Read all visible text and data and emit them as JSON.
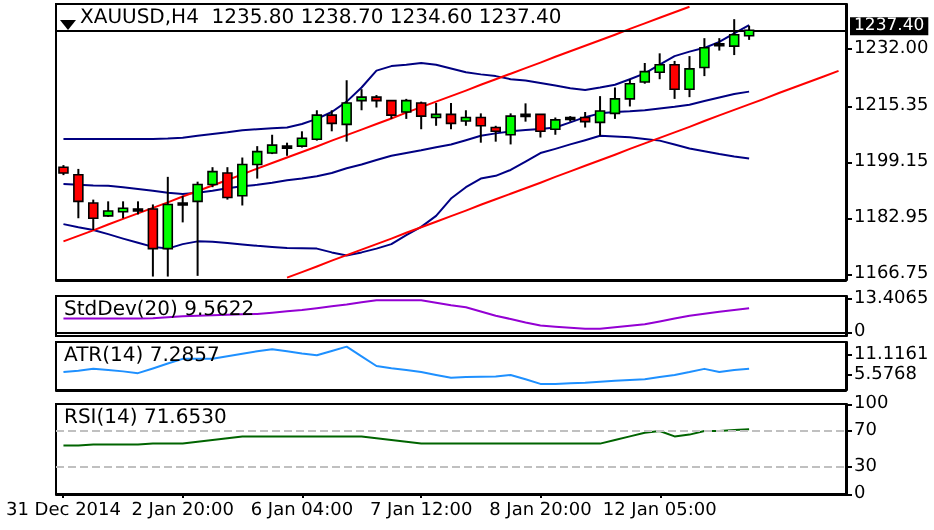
{
  "chart_data": [
    {
      "type": "candlestick",
      "title": "XAUUSD,H4  1235.80 1238.70 1234.60 1237.40",
      "categories": [
        null,
        null,
        null,
        null,
        null,
        null,
        null,
        null,
        null,
        null,
        null,
        null,
        null,
        null,
        null,
        null,
        null,
        null,
        null,
        null,
        null,
        null,
        null,
        null,
        null,
        null,
        null,
        null,
        null,
        null,
        null,
        null,
        null,
        null,
        null,
        null,
        null,
        null,
        null,
        null,
        null,
        null,
        null,
        null,
        null,
        null,
        null,
        null,
        null,
        null,
        null,
        null,
        null
      ],
      "ohlc": [
        [
          1197.7,
          1198.3,
          1195.4,
          1196.0
        ],
        [
          1195.5,
          1197.2,
          1182.9,
          1187.8
        ],
        [
          1187.3,
          1188.3,
          1179.5,
          1182.9
        ],
        [
          1183.6,
          1187.8,
          1183.3,
          1185.0
        ],
        [
          1184.8,
          1187.8,
          1182.9,
          1185.8
        ],
        [
          1185.6,
          1187.8,
          1184.0,
          1185.6
        ],
        [
          1185.6,
          1186.9,
          1166.0,
          1174.1
        ],
        [
          1174.1,
          1194.9,
          1166.0,
          1186.9
        ],
        [
          1187.3,
          1189.4,
          1181.7,
          1187.3
        ],
        [
          1187.8,
          1193.5,
          1166.2,
          1192.7
        ],
        [
          1192.7,
          1197.7,
          1191.9,
          1196.4
        ],
        [
          1196.0,
          1197.7,
          1188.3,
          1188.9
        ],
        [
          1189.4,
          1200.5,
          1186.6,
          1198.5
        ],
        [
          1198.5,
          1203.8,
          1194.4,
          1202.2
        ],
        [
          1201.8,
          1207.1,
          1201.5,
          1204.1
        ],
        [
          1203.8,
          1204.8,
          1201.0,
          1203.8
        ],
        [
          1203.8,
          1208.1,
          1203.4,
          1206.1
        ],
        [
          1205.8,
          1214.2,
          1205.4,
          1212.8
        ],
        [
          1212.8,
          1214.2,
          1208.1,
          1210.4
        ],
        [
          1210.1,
          1222.9,
          1205.1,
          1216.3
        ],
        [
          1217.0,
          1220.3,
          1214.2,
          1218.0
        ],
        [
          1218.0,
          1218.6,
          1215.0,
          1217.0
        ],
        [
          1217.0,
          1217.0,
          1211.7,
          1212.8
        ],
        [
          1213.7,
          1217.5,
          1211.7,
          1217.0
        ],
        [
          1216.3,
          1216.7,
          1208.7,
          1212.5
        ],
        [
          1212.1,
          1216.3,
          1209.7,
          1213.0
        ],
        [
          1213.0,
          1216.3,
          1208.7,
          1210.4
        ],
        [
          1211.1,
          1214.2,
          1209.7,
          1212.1
        ],
        [
          1212.1,
          1213.3,
          1204.8,
          1209.7
        ],
        [
          1209.2,
          1209.7,
          1205.1,
          1208.1
        ],
        [
          1207.1,
          1213.3,
          1204.3,
          1212.5
        ],
        [
          1213.0,
          1216.2,
          1210.9,
          1213.0
        ],
        [
          1213.0,
          1213.0,
          1206.3,
          1208.1
        ],
        [
          1208.7,
          1212.1,
          1207.1,
          1211.4
        ],
        [
          1212.1,
          1212.5,
          1210.9,
          1212.1
        ],
        [
          1212.1,
          1213.7,
          1209.2,
          1210.9
        ],
        [
          1210.7,
          1218.3,
          1206.8,
          1214.0
        ],
        [
          1213.3,
          1220.8,
          1211.7,
          1217.5
        ],
        [
          1217.5,
          1223.2,
          1215.3,
          1221.9
        ],
        [
          1222.4,
          1227.9,
          1221.9,
          1225.4
        ],
        [
          1225.2,
          1230.7,
          1223.2,
          1227.4
        ],
        [
          1227.4,
          1228.5,
          1217.5,
          1220.3
        ],
        [
          1220.3,
          1229.9,
          1218.0,
          1226.2
        ],
        [
          1226.6,
          1235.1,
          1224.1,
          1232.3
        ],
        [
          1233.5,
          1235.1,
          1231.5,
          1233.5
        ],
        [
          1232.8,
          1240.6,
          1230.2,
          1236.1
        ],
        [
          1235.8,
          1238.7,
          1234.6,
          1237.4
        ],
        null,
        null,
        null,
        null,
        null,
        null
      ],
      "series": [
        {
          "type": "line",
          "color": "#000080",
          "values": [
            1205.9,
            1205.9,
            1205.9,
            1205.9,
            1205.9,
            1205.9,
            1205.9,
            1206.0,
            1206.2,
            1206.8,
            1207.3,
            1207.8,
            1208.4,
            1208.7,
            1209.0,
            1209.2,
            1210.2,
            1211.7,
            1213.7,
            1216.7,
            1220.8,
            1225.7,
            1227.0,
            1227.4,
            1227.9,
            1227.4,
            1226.3,
            1225.2,
            1224.6,
            1224.1,
            1223.2,
            1222.8,
            1222.1,
            1221.4,
            1220.6,
            1220.1,
            1220.8,
            1221.6,
            1223.2,
            1224.9,
            1227.4,
            1229.9,
            1231.2,
            1232.3,
            1234.0,
            1236.5,
            1238.9,
            null,
            null,
            null,
            null,
            null,
            null
          ]
        },
        {
          "type": "line",
          "color": "#000082",
          "values": [
            1192.8,
            1192.6,
            1192.4,
            1192.3,
            1191.9,
            1191.4,
            1190.9,
            1190.3,
            1189.9,
            1190.3,
            1190.9,
            1191.6,
            1192.2,
            1192.6,
            1193.2,
            1193.9,
            1194.4,
            1195.1,
            1196.0,
            1197.4,
            1198.5,
            1199.8,
            1201.0,
            1201.8,
            1202.6,
            1203.5,
            1204.3,
            1205.5,
            1206.8,
            1207.5,
            1208.1,
            1208.5,
            1208.8,
            1209.2,
            1210.7,
            1212.2,
            1213.3,
            1213.7,
            1213.9,
            1214.2,
            1214.7,
            1215.2,
            1215.8,
            1216.9,
            1217.9,
            1218.9,
            1219.6,
            null,
            null,
            null,
            null,
            null,
            null
          ]
        },
        {
          "type": "line",
          "color": "#000084",
          "values": [
            1181.2,
            1180.3,
            1179.5,
            1178.3,
            1177.0,
            1175.8,
            1174.6,
            1174.1,
            1175.4,
            1176.2,
            1176.1,
            1175.7,
            1175.3,
            1174.9,
            1174.6,
            1174.3,
            1174.2,
            1174.1,
            1173.0,
            1172.1,
            1173.0,
            1174.1,
            1175.4,
            1178.0,
            1180.4,
            1183.6,
            1188.6,
            1191.9,
            1194.4,
            1195.2,
            1196.9,
            1199.3,
            1201.8,
            1203.0,
            1204.3,
            1205.5,
            1206.8,
            1206.6,
            1206.4,
            1205.9,
            1205.4,
            1204.3,
            1203.1,
            1202.3,
            1201.5,
            1200.8,
            1200.2,
            null,
            null,
            null,
            null,
            null,
            null
          ]
        },
        {
          "type": "line",
          "color": "#ff0000",
          "values": [
            1176.2,
            1177.8,
            1179.4,
            1181.1,
            1182.7,
            1184.3,
            1185.9,
            1187.5,
            1189.2,
            1190.8,
            1192.4,
            1194.0,
            1195.6,
            1197.3,
            1198.9,
            1200.5,
            1202.1,
            1203.7,
            1205.4,
            1207.0,
            1208.6,
            1210.2,
            1211.8,
            1213.5,
            1215.1,
            1216.7,
            1218.3,
            1219.9,
            1221.6,
            1223.2,
            1224.8,
            1226.4,
            1228.0,
            1229.7,
            1231.3,
            1232.9,
            1234.5,
            1236.1,
            1237.8,
            1239.4,
            1241.0,
            1242.6,
            1244.2,
            null,
            null,
            null,
            null,
            null,
            null,
            null,
            null,
            null,
            null
          ]
        },
        {
          "type": "line",
          "color": "#fe0000",
          "values": [
            null,
            null,
            null,
            null,
            null,
            null,
            null,
            null,
            null,
            null,
            null,
            null,
            null,
            null,
            null,
            1165.7,
            1167.3,
            1168.9,
            1170.6,
            1172.2,
            1173.8,
            1175.4,
            1177.0,
            1178.7,
            1180.3,
            1181.9,
            1183.5,
            1185.1,
            1186.8,
            1188.4,
            1190.0,
            1191.6,
            1193.2,
            1194.9,
            1196.5,
            1198.1,
            1199.7,
            1201.3,
            1203.0,
            1204.6,
            1206.2,
            1207.8,
            1209.4,
            1211.1,
            1212.7,
            1214.3,
            1215.9,
            1217.5,
            1219.2,
            1220.8,
            1222.4,
            1224.0,
            1225.6
          ]
        }
      ],
      "ylim": [
        1165,
        1245
      ],
      "yticks": [
        1166.75,
        1182.95,
        1199.15,
        1215.35,
        {
          "value": 1232,
          "label": "1232.00"
        }
      ],
      "ref_lines": [
        {
          "axis": "y",
          "value": 1237.4,
          "label": "1237.40",
          "color": "#000000"
        }
      ],
      "tick_labels": "y"
    },
    {
      "type": "line",
      "title": "StdDev(20) 9.5622",
      "categories": [
        null,
        null,
        null,
        null,
        null,
        null,
        null,
        null,
        null,
        null,
        null,
        null,
        null,
        null,
        null,
        null,
        null,
        null,
        null,
        null,
        null,
        null,
        null,
        null,
        null,
        null,
        null,
        null,
        null,
        null,
        null,
        null,
        null,
        null,
        null,
        null,
        null,
        null,
        null,
        null,
        null,
        null,
        null,
        null,
        null,
        null,
        null,
        null,
        null,
        null,
        null,
        null,
        null
      ],
      "series": [
        {
          "color": "#9400d3",
          "values": [
            5.5,
            5.5,
            5.5,
            5.5,
            5.5,
            5.5,
            5.6,
            6.0,
            6.4,
            6.6,
            6.8,
            7.0,
            7.2,
            7.3,
            7.8,
            8.4,
            8.9,
            9.6,
            10.4,
            11.1,
            12.0,
            12.8,
            12.8,
            12.8,
            12.8,
            11.8,
            10.8,
            10.0,
            8.3,
            6.6,
            5.3,
            3.9,
            2.7,
            2.2,
            1.8,
            1.4,
            1.4,
            2.0,
            2.6,
            3.2,
            4.3,
            5.5,
            6.6,
            7.4,
            8.2,
            8.9,
            9.6,
            null,
            null,
            null,
            null,
            null,
            null
          ]
        }
      ],
      "ylim": [
        -1.5,
        14.5
      ],
      "yticks": [
        0,
        13.4065
      ],
      "tick_labels": "y"
    },
    {
      "type": "line",
      "title": "ATR(14) 7.2857",
      "categories": [
        null,
        null,
        null,
        null,
        null,
        null,
        null,
        null,
        null,
        null,
        null,
        null,
        null,
        null,
        null,
        null,
        null,
        null,
        null,
        null,
        null,
        null,
        null,
        null,
        null,
        null,
        null,
        null,
        null,
        null,
        null,
        null,
        null,
        null,
        null,
        null,
        null,
        null,
        null,
        null,
        null,
        null,
        null,
        null,
        null,
        null,
        null,
        null,
        null,
        null,
        null,
        null,
        null
      ],
      "series": [
        {
          "color": "#1e90ff",
          "values": [
            6.4,
            6.8,
            7.3,
            7.0,
            6.6,
            6.1,
            7.4,
            8.8,
            10.1,
            10.1,
            10.1,
            10.8,
            11.5,
            12.2,
            12.8,
            12.2,
            11.6,
            11.1,
            12.3,
            13.5,
            10.8,
            8.1,
            7.5,
            7.0,
            6.4,
            5.6,
            4.8,
            5.0,
            5.1,
            5.2,
            5.6,
            4.4,
            3.1,
            3.1,
            3.3,
            3.4,
            3.7,
            4.0,
            4.2,
            4.4,
            5.0,
            5.6,
            6.4,
            7.3,
            6.4,
            7.0,
            7.3,
            null,
            null,
            null,
            null,
            null,
            null
          ]
        }
      ],
      "ylim": [
        1.4,
        14.8
      ],
      "yticks": [
        5.5768,
        11.1161
      ],
      "tick_labels": "y"
    },
    {
      "type": "line",
      "title": "RSI(14) 71.6530",
      "categories": [
        "31 Dec 2014",
        null,
        null,
        null,
        null,
        null,
        null,
        null,
        "2 Jan 20:00",
        null,
        null,
        null,
        null,
        null,
        null,
        null,
        "6 Jan 04:00",
        null,
        null,
        null,
        null,
        null,
        null,
        null,
        "7 Jan 12:00",
        null,
        null,
        null,
        null,
        null,
        null,
        null,
        "8 Jan 20:00",
        null,
        null,
        null,
        null,
        null,
        null,
        null,
        "12 Jan 05:00",
        null,
        null,
        null,
        null,
        null,
        null,
        null,
        null,
        null,
        null,
        null,
        null
      ],
      "series": [
        {
          "color": "#006400",
          "values": [
            54,
            54,
            55,
            55,
            55,
            55,
            56,
            56,
            56,
            58,
            60,
            62,
            64,
            64,
            64,
            64,
            64,
            64,
            64,
            64,
            64,
            62,
            60,
            58,
            56,
            56,
            56,
            56,
            56,
            56,
            56,
            56,
            56,
            56,
            56,
            56,
            56,
            60,
            64,
            68,
            70,
            64,
            66,
            70,
            70,
            71,
            72,
            null,
            null,
            null,
            null,
            null,
            null
          ]
        }
      ],
      "ylim": [
        0,
        100
      ],
      "yticks": [
        0,
        30,
        70,
        100
      ],
      "ref_lines": [
        {
          "axis": "y",
          "value": 70,
          "color": "#c0c0c0",
          "line_style": "dashed"
        },
        {
          "axis": "y",
          "value": 30,
          "color": "#c0c0c0",
          "line_style": "dashed"
        }
      ]
    }
  ]
}
